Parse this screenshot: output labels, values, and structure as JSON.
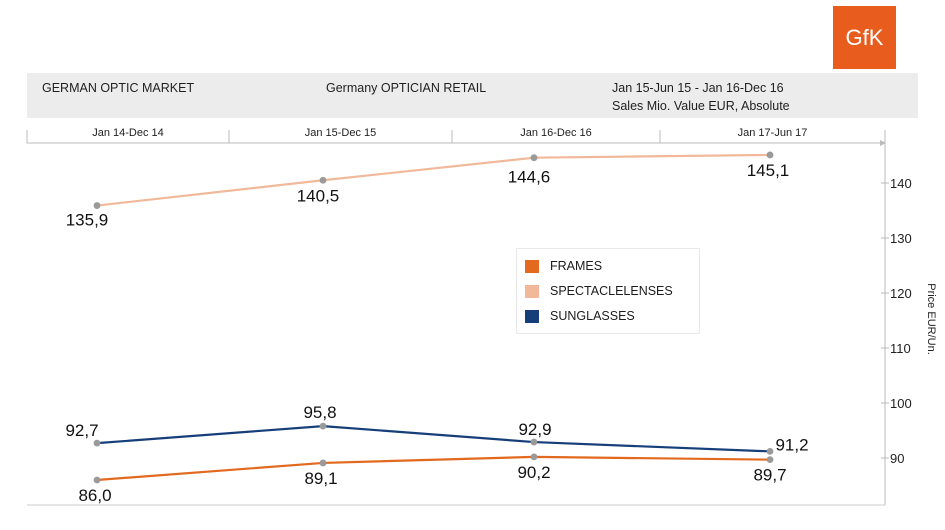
{
  "logo": {
    "text": "GfK",
    "color": "#e85d1e"
  },
  "header": {
    "market": "GERMAN OPTIC MARKET",
    "retail": "Germany OPTICIAN RETAIL",
    "period": "Jan 15-Jun 15 - Jan 16-Dec 16",
    "measure": "Sales Mio. Value EUR,  Absolute"
  },
  "chart_data": {
    "type": "line",
    "categories": [
      "Jan 14-Dec 14",
      "Jan 15-Dec 15",
      "Jan 16-Dec 16",
      "Jan 17-Jun 17"
    ],
    "series": [
      {
        "name": "FRAMES",
        "color": "#e2691e",
        "values": [
          86.0,
          89.1,
          90.2,
          89.7
        ],
        "labels": [
          "86,0",
          "89,1",
          "90,2",
          "89,7"
        ]
      },
      {
        "name": "SPECTACLELENSES",
        "color": "#f1b999",
        "values": [
          135.9,
          140.5,
          144.6,
          145.1
        ],
        "labels": [
          "135,9",
          "140,5",
          "144,6",
          "145,1"
        ]
      },
      {
        "name": "SUNGLASSES",
        "color": "#163f7a",
        "values": [
          92.7,
          95.8,
          92.9,
          91.2
        ],
        "labels": [
          "92,7",
          "95,8",
          "92,9",
          "91,2"
        ]
      }
    ],
    "yticks": [
      90,
      100,
      110,
      120,
      130,
      140
    ],
    "ylabel": "Price EUR/Un.",
    "ylim": [
      82,
      148
    ],
    "legend_position": "center-right"
  }
}
